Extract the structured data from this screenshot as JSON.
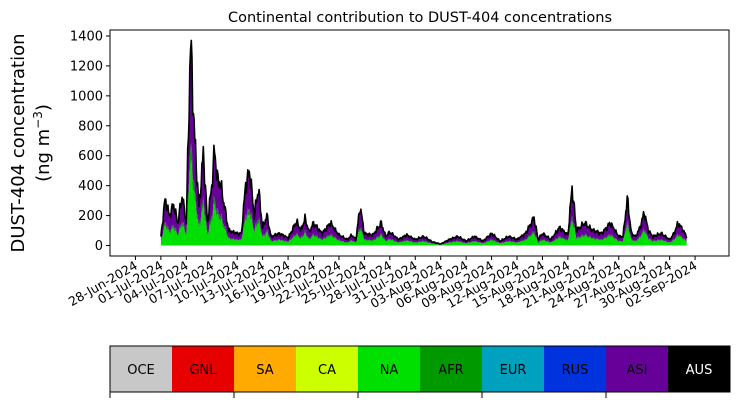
{
  "chart_data": {
    "type": "area",
    "title": "Continental contribution to DUST-404 concentrations",
    "ylabel_line1": "DUST-404 concentration",
    "ylabel_line2_prefix": "(ng m",
    "ylabel_line2_exp": "−3",
    "ylabel_line2_suffix": ")",
    "ylim": [
      -70,
      1440
    ],
    "yticks": [
      0,
      200,
      400,
      600,
      800,
      1000,
      1200,
      1400
    ],
    "xlim": [
      "2024-06-25",
      "2024-09-06"
    ],
    "xticks": [
      "28-Jun-2024",
      "01-Jul-2024",
      "04-Jul-2024",
      "07-Jul-2024",
      "10-Jul-2024",
      "13-Jul-2024",
      "16-Jul-2024",
      "19-Jul-2024",
      "22-Jul-2024",
      "25-Jul-2024",
      "28-Jul-2024",
      "31-Jul-2024",
      "03-Aug-2024",
      "06-Aug-2024",
      "09-Aug-2024",
      "12-Aug-2024",
      "15-Aug-2024",
      "18-Aug-2024",
      "21-Aug-2024",
      "24-Aug-2024",
      "27-Aug-2024",
      "30-Aug-2024",
      "02-Sep-2024"
    ],
    "data_start": "2024-07-01",
    "data_end": "2024-09-01",
    "total_keypoints": [
      [
        "2024-07-01",
        60
      ],
      [
        "2024-07-01T12",
        310
      ],
      [
        "2024-07-02",
        200
      ],
      [
        "2024-07-02T12",
        270
      ],
      [
        "2024-07-03",
        150
      ],
      [
        "2024-07-03T12",
        330
      ],
      [
        "2024-07-04",
        150
      ],
      [
        "2024-07-04T12",
        1360
      ],
      [
        "2024-07-05",
        700
      ],
      [
        "2024-07-05T12",
        250
      ],
      [
        "2024-07-06",
        620
      ],
      [
        "2024-07-06T12",
        150
      ],
      [
        "2024-07-07",
        400
      ],
      [
        "2024-07-07T08",
        640
      ],
      [
        "2024-07-07T16",
        440
      ],
      [
        "2024-07-08",
        420
      ],
      [
        "2024-07-09",
        100
      ],
      [
        "2024-07-10",
        80
      ],
      [
        "2024-07-10T12",
        80
      ],
      [
        "2024-07-11",
        410
      ],
      [
        "2024-07-11T12",
        490
      ],
      [
        "2024-07-12",
        200
      ],
      [
        "2024-07-12T12",
        380
      ],
      [
        "2024-07-13",
        120
      ],
      [
        "2024-07-13T12",
        200
      ],
      [
        "2024-07-14",
        60
      ],
      [
        "2024-07-15",
        80
      ],
      [
        "2024-07-16",
        50
      ],
      [
        "2024-07-17",
        160
      ],
      [
        "2024-07-17T12",
        100
      ],
      [
        "2024-07-18",
        180
      ],
      [
        "2024-07-18T12",
        90
      ],
      [
        "2024-07-19",
        150
      ],
      [
        "2024-07-20",
        80
      ],
      [
        "2024-07-21",
        150
      ],
      [
        "2024-07-22",
        70
      ],
      [
        "2024-07-23",
        40
      ],
      [
        "2024-07-23T12",
        70
      ],
      [
        "2024-07-24",
        40
      ],
      [
        "2024-07-24T12",
        260
      ],
      [
        "2024-07-25",
        80
      ],
      [
        "2024-07-26",
        70
      ],
      [
        "2024-07-27",
        150
      ],
      [
        "2024-07-27T12",
        60
      ],
      [
        "2024-07-28",
        90
      ],
      [
        "2024-07-29",
        40
      ],
      [
        "2024-07-30",
        70
      ],
      [
        "2024-07-31",
        40
      ],
      [
        "2024-08-01",
        60
      ],
      [
        "2024-08-02",
        25
      ],
      [
        "2024-08-03",
        10
      ],
      [
        "2024-08-04",
        40
      ],
      [
        "2024-08-05",
        60
      ],
      [
        "2024-08-06",
        30
      ],
      [
        "2024-08-07",
        60
      ],
      [
        "2024-08-08",
        30
      ],
      [
        "2024-08-09",
        80
      ],
      [
        "2024-08-10",
        30
      ],
      [
        "2024-08-11",
        60
      ],
      [
        "2024-08-12",
        40
      ],
      [
        "2024-08-13",
        80
      ],
      [
        "2024-08-14",
        185
      ],
      [
        "2024-08-14T12",
        40
      ],
      [
        "2024-08-15",
        80
      ],
      [
        "2024-08-16",
        40
      ],
      [
        "2024-08-17",
        120
      ],
      [
        "2024-08-18",
        70
      ],
      [
        "2024-08-18T12",
        390
      ],
      [
        "2024-08-19",
        100
      ],
      [
        "2024-08-20",
        150
      ],
      [
        "2024-08-20T12",
        120
      ],
      [
        "2024-08-21",
        100
      ],
      [
        "2024-08-22",
        80
      ],
      [
        "2024-08-23",
        150
      ],
      [
        "2024-08-24",
        60
      ],
      [
        "2024-08-24T12",
        60
      ],
      [
        "2024-08-25",
        310
      ],
      [
        "2024-08-25T12",
        80
      ],
      [
        "2024-08-26",
        60
      ],
      [
        "2024-08-26T12",
        120
      ],
      [
        "2024-08-27",
        220
      ],
      [
        "2024-08-27T12",
        100
      ],
      [
        "2024-08-28",
        60
      ],
      [
        "2024-08-29",
        80
      ],
      [
        "2024-08-30",
        40
      ],
      [
        "2024-08-30T12",
        80
      ],
      [
        "2024-08-31",
        150
      ],
      [
        "2024-08-31T12",
        110
      ],
      [
        "2024-09-01",
        60
      ]
    ],
    "legend_position": "bottom",
    "regions": [
      {
        "name": "OCE",
        "color": "#c8c8c8",
        "text_color": "#000000"
      },
      {
        "name": "GNL",
        "color": "#e60000",
        "text_color": "#000000"
      },
      {
        "name": "SA",
        "color": "#ffaa00",
        "text_color": "#000000"
      },
      {
        "name": "CA",
        "color": "#ccff00",
        "text_color": "#000000"
      },
      {
        "name": "NA",
        "color": "#00e000",
        "text_color": "#000000"
      },
      {
        "name": "AFR",
        "color": "#009900",
        "text_color": "#000000"
      },
      {
        "name": "EUR",
        "color": "#00a0bf",
        "text_color": "#000000"
      },
      {
        "name": "RUS",
        "color": "#0033dd",
        "text_color": "#000000"
      },
      {
        "name": "ASI",
        "color": "#660099",
        "text_color": "#000000"
      },
      {
        "name": "AUS",
        "color": "#000000",
        "text_color": "#ffffff"
      }
    ],
    "stack_shares": [
      {
        "name": "NA",
        "share": 0.42
      },
      {
        "name": "AFR",
        "share": 0.08
      },
      {
        "name": "ASI",
        "share": 0.48
      },
      {
        "name": "AUS",
        "share": 0.02
      }
    ]
  }
}
